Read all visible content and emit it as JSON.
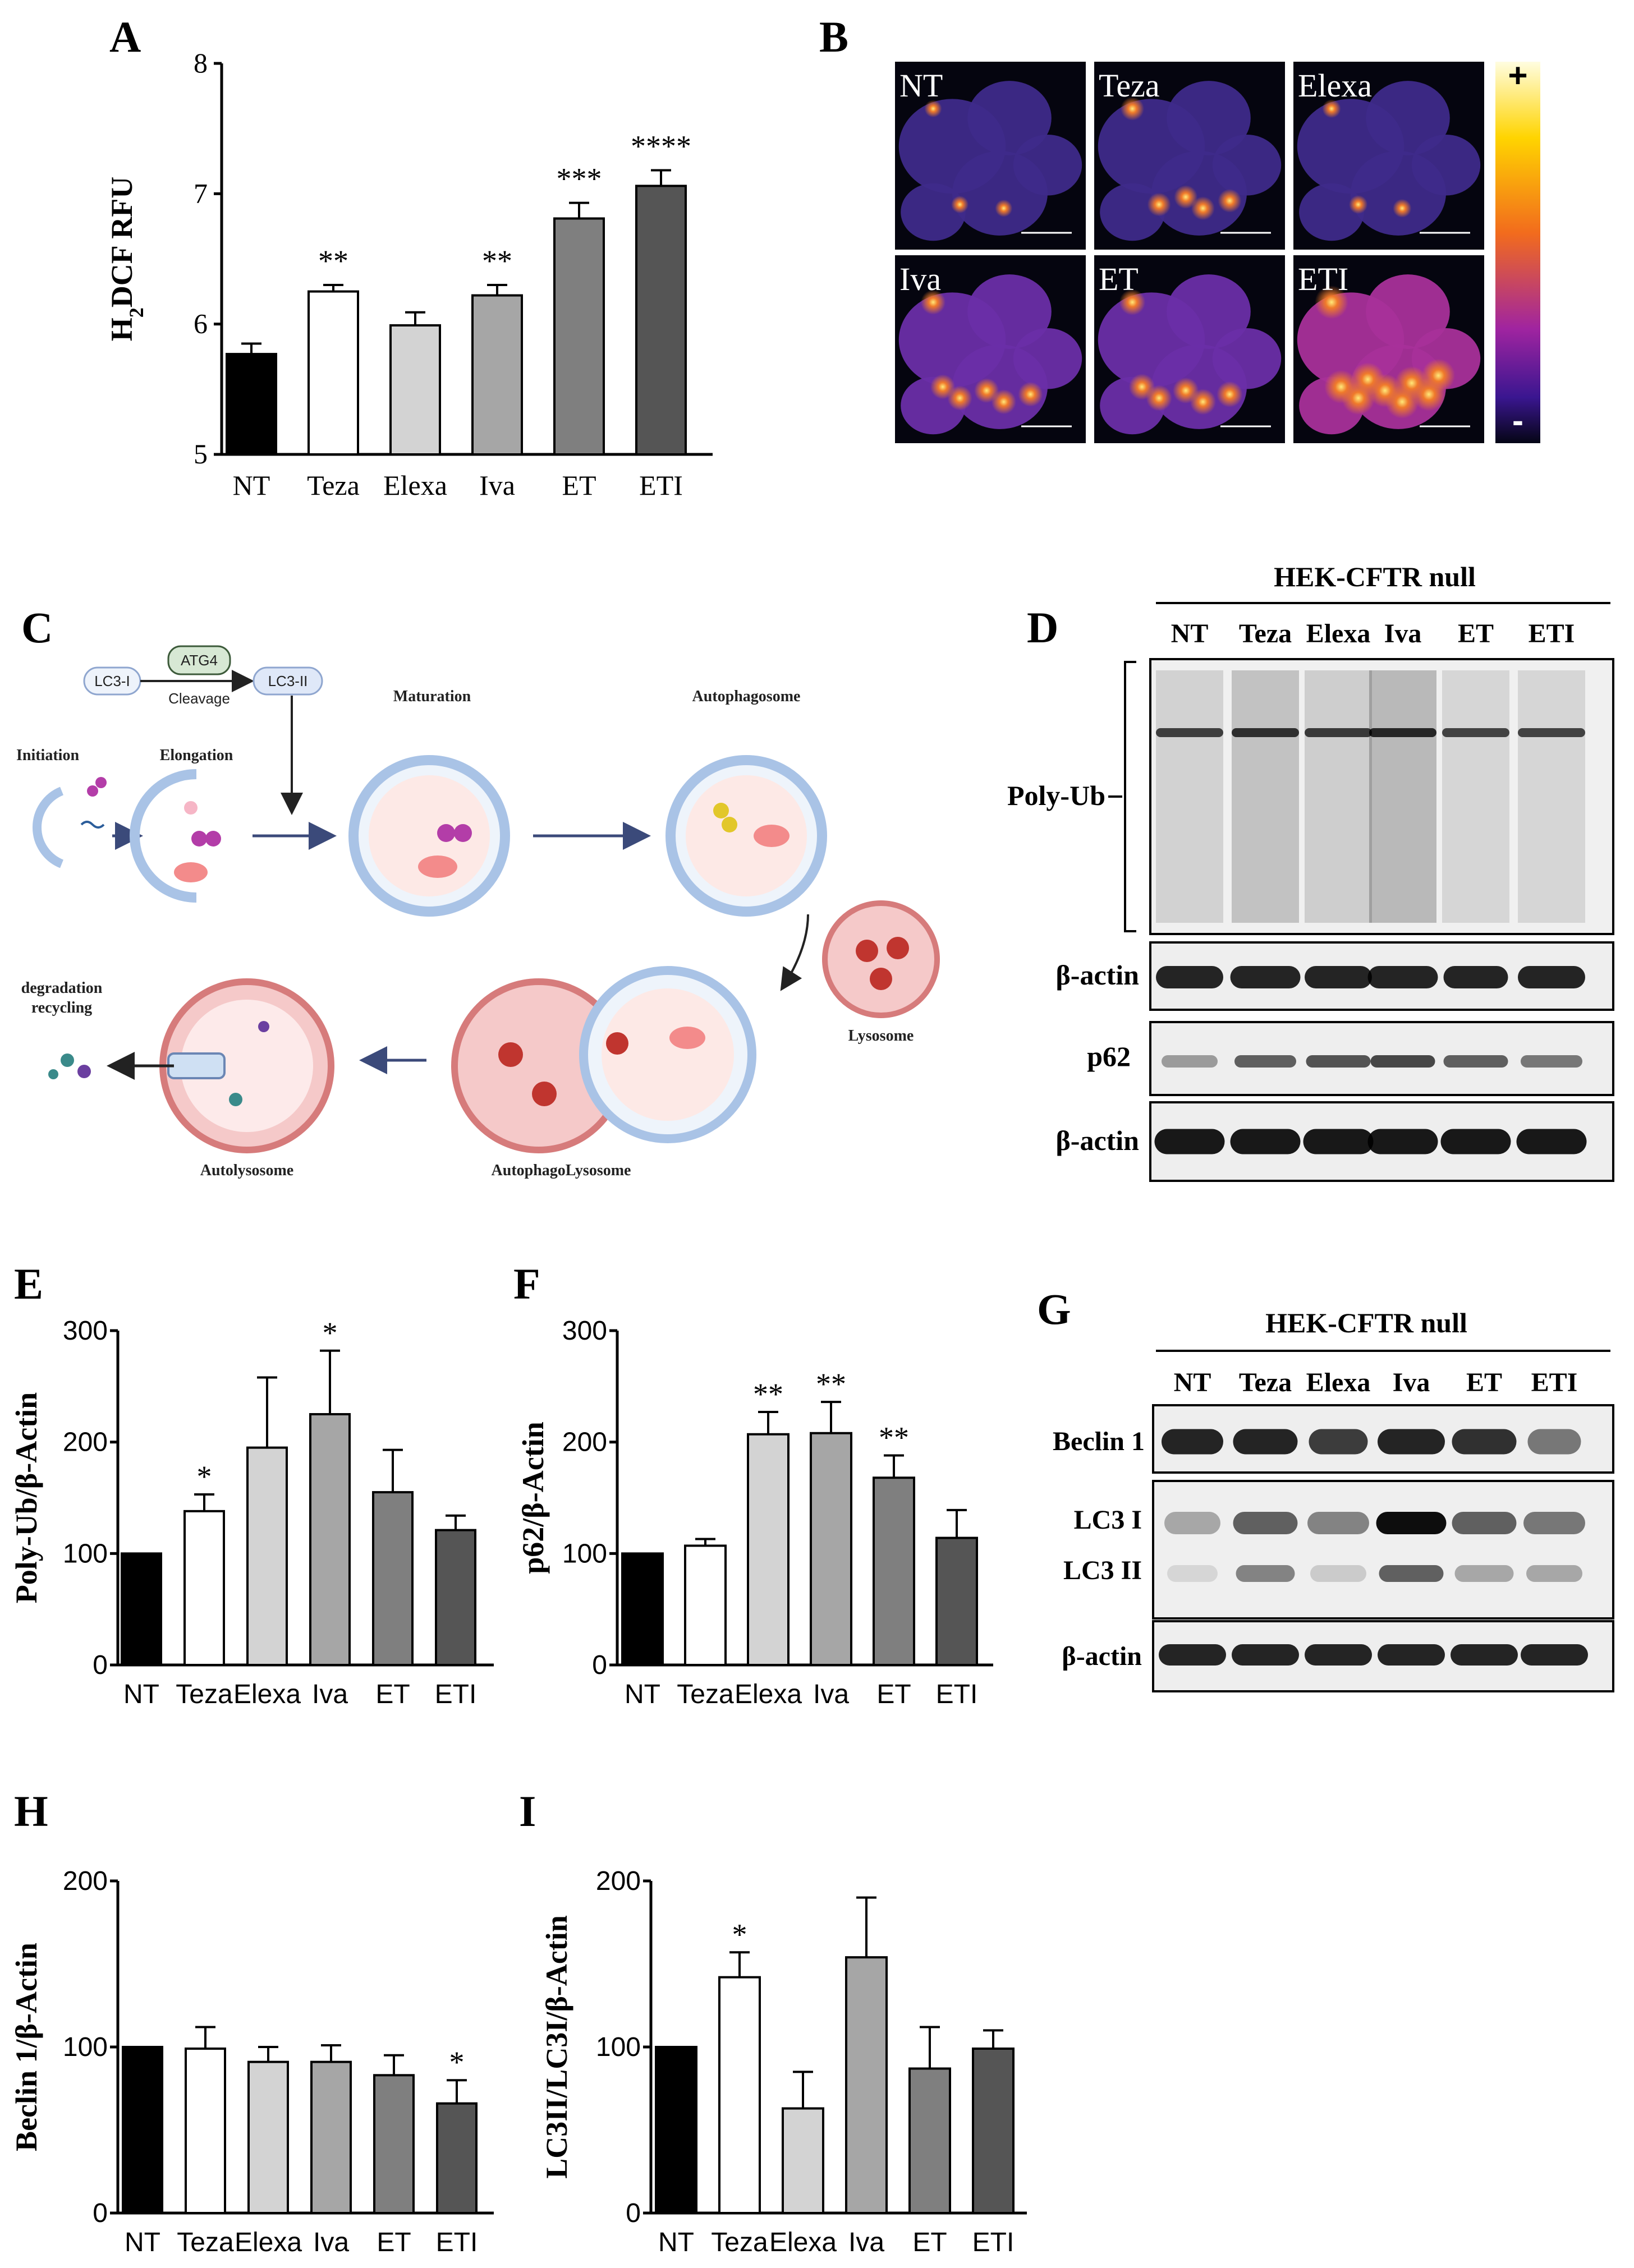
{
  "panel_letters": {
    "A": "A",
    "B": "B",
    "C": "C",
    "D": "D",
    "E": "E",
    "F": "F",
    "G": "G",
    "H": "H",
    "I": "I"
  },
  "colors": {
    "NT": "#000000",
    "Teza": "#ffffff",
    "Elexa": "#d3d3d3",
    "Iva": "#a6a6a6",
    "ET": "#7f7f7f",
    "ETI": "#555555"
  },
  "heatmap_labels": [
    "NT",
    "Teza",
    "Elexa",
    "Iva",
    "ET",
    "ETI"
  ],
  "heatmap_scale": {
    "plus": "+",
    "minus": "-"
  },
  "heatmap_relative_intensity": [
    0.25,
    0.5,
    0.3,
    0.55,
    0.6,
    0.9
  ],
  "diagram": {
    "lc3i": "LC3-I",
    "atg4": "ATG4",
    "lc3ii": "LC3-II",
    "cleavage": "Cleavage",
    "initiation": "Initiation",
    "elongation": "Elongation",
    "maturation": "Maturation",
    "autophagosome": "Autophagosome",
    "lysosome": "Lysosome",
    "autophagolysosome": "AutophagoLysosome",
    "autolysosome": "Autolysosome",
    "degradation": "degradation",
    "recycling": "recycling"
  },
  "blot_D": {
    "header": "HEK-CFTR  null",
    "lanes": [
      "NT",
      "Teza",
      "Elexa",
      "Iva",
      "ET",
      "ETI"
    ],
    "rows": {
      "polyub": "Poly-Ub",
      "actin1": "β-actin",
      "p62": "p62",
      "actin2": "β-actin"
    }
  },
  "blot_G": {
    "header": "HEK-CFTR  null",
    "lanes": [
      "NT",
      "Teza",
      "Elexa",
      "Iva",
      "ET",
      "ETI"
    ],
    "rows": {
      "beclin": "Beclin 1",
      "lc3i": "LC3 I",
      "lc3ii": "LC3 II",
      "actin": "β-actin"
    }
  },
  "chart_data": [
    {
      "panel": "A",
      "type": "bar",
      "categories": [
        "NT",
        "Teza",
        "Elexa",
        "Iva",
        "ET",
        "ETI"
      ],
      "values": [
        5.77,
        6.25,
        5.99,
        6.22,
        6.81,
        7.06
      ],
      "errors": [
        0.08,
        0.05,
        0.1,
        0.08,
        0.12,
        0.12
      ],
      "significance": [
        "",
        "**",
        "",
        "**",
        "***",
        "****"
      ],
      "ylabel": "H2DCF RFU",
      "ylim": [
        5,
        8
      ],
      "yticks": [
        "5",
        "6",
        "7",
        "8"
      ]
    },
    {
      "panel": "E",
      "type": "bar",
      "categories": [
        "NT",
        "Teza",
        "Elexa",
        "Iva",
        "ET",
        "ETI"
      ],
      "values": [
        100,
        138,
        195,
        225,
        155,
        121
      ],
      "errors": [
        0,
        15,
        63,
        57,
        38,
        13
      ],
      "significance": [
        "",
        "*",
        "",
        "*",
        "",
        ""
      ],
      "ylabel": "Poly-Ub/β-Actin",
      "ylim": [
        0,
        300
      ],
      "yticks": [
        "0",
        "100",
        "200",
        "300"
      ]
    },
    {
      "panel": "F",
      "type": "bar",
      "categories": [
        "NT",
        "Teza",
        "Elexa",
        "Iva",
        "ET",
        "ETI"
      ],
      "values": [
        100,
        107,
        207,
        208,
        168,
        114
      ],
      "errors": [
        0,
        6,
        20,
        28,
        20,
        25
      ],
      "significance": [
        "",
        "",
        "**",
        "**",
        "**",
        ""
      ],
      "ylabel": "p62/β-Actin",
      "ylim": [
        0,
        300
      ],
      "yticks": [
        "0",
        "100",
        "200",
        "300"
      ]
    },
    {
      "panel": "H",
      "type": "bar",
      "categories": [
        "NT",
        "Teza",
        "Elexa",
        "Iva",
        "ET",
        "ETI"
      ],
      "values": [
        100,
        99,
        91,
        91,
        83,
        66
      ],
      "errors": [
        0,
        13,
        9,
        10,
        12,
        14
      ],
      "significance": [
        "",
        "",
        "",
        "",
        "",
        "*"
      ],
      "ylabel": "Beclin 1/β-Actin",
      "ylim": [
        0,
        200
      ],
      "yticks": [
        "0",
        "100",
        "200"
      ]
    },
    {
      "panel": "I",
      "type": "bar",
      "categories": [
        "NT",
        "Teza",
        "Elexa",
        "Iva",
        "ET",
        "ETI"
      ],
      "values": [
        100,
        142,
        63,
        154,
        87,
        99
      ],
      "errors": [
        0,
        15,
        22,
        36,
        25,
        11
      ],
      "significance": [
        "",
        "*",
        "",
        "",
        "",
        ""
      ],
      "ylabel": "LC3II/LC3I/β-Actin",
      "ylim": [
        0,
        200
      ],
      "yticks": [
        "0",
        "100",
        "200"
      ]
    }
  ]
}
